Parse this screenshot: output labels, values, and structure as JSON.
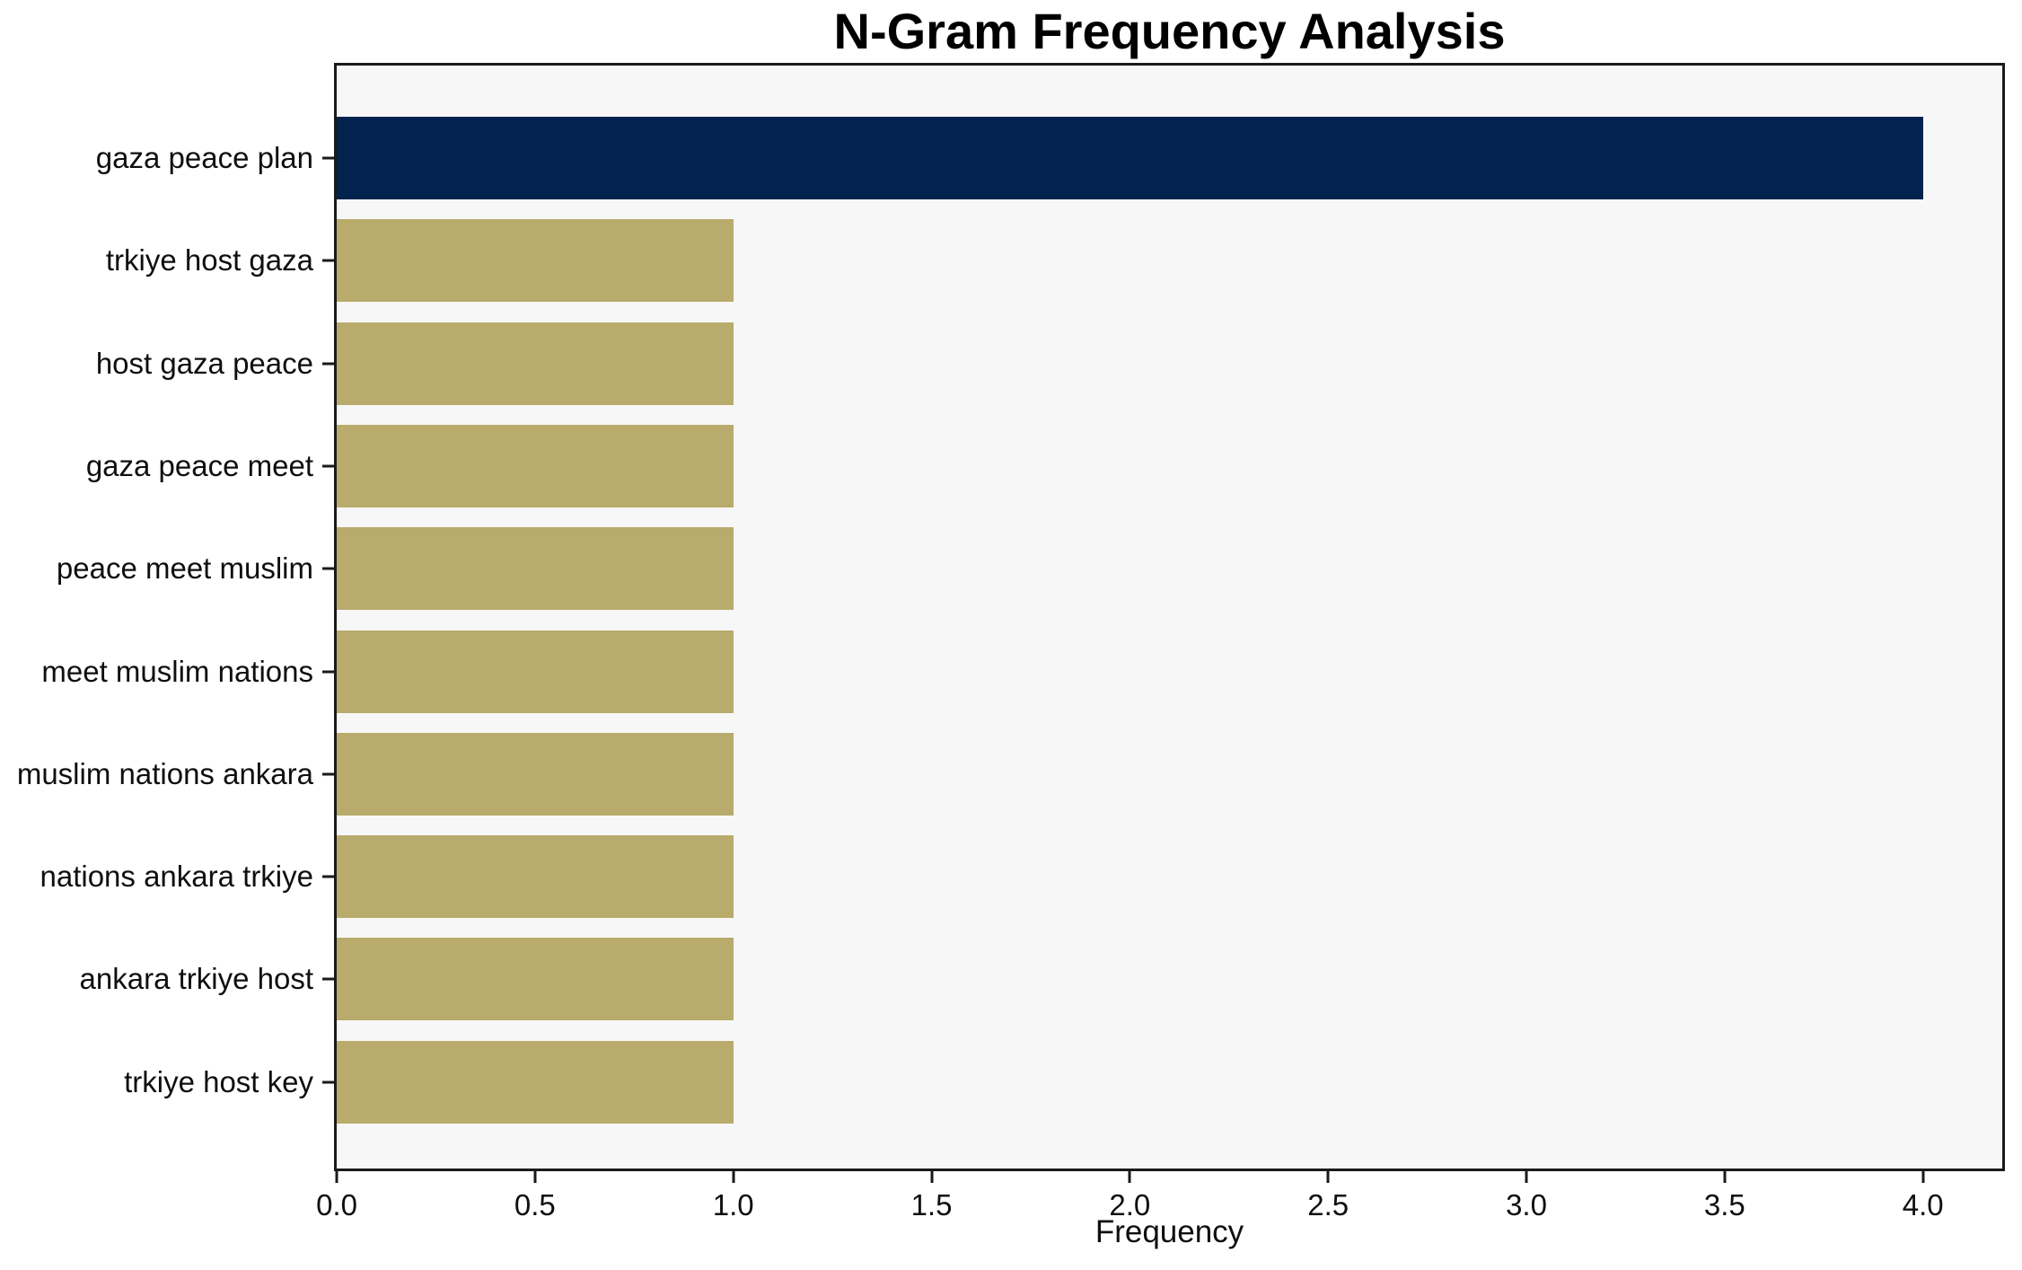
{
  "figure": {
    "title": "N-Gram Frequency Analysis"
  },
  "chart_data": {
    "type": "bar",
    "orientation": "horizontal",
    "title": "N-Gram Frequency Analysis",
    "xlabel": "Frequency",
    "ylabel": "",
    "categories": [
      "gaza peace plan",
      "trkiye host gaza",
      "host gaza peace",
      "gaza peace meet",
      "peace meet muslim",
      "meet muslim nations",
      "muslim nations ankara",
      "nations ankara trkiye",
      "ankara trkiye host",
      "trkiye host key"
    ],
    "values": [
      4,
      1,
      1,
      1,
      1,
      1,
      1,
      1,
      1,
      1
    ],
    "bar_colors": [
      "#02234d",
      "#b8ab6b",
      "#b8ab6b",
      "#b8ab6b",
      "#b8ab6b",
      "#b8ab6b",
      "#b8ab6b",
      "#b8ab6b",
      "#b8ab6b",
      "#b8ab6b"
    ],
    "xlim": [
      0,
      4.2
    ],
    "xticks": [
      0,
      0.5,
      1,
      1.5,
      2,
      2.5,
      3,
      3.5,
      4
    ],
    "xtick_labels": [
      "0.0",
      "0.5",
      "1.0",
      "1.5",
      "2.0",
      "2.5",
      "3.0",
      "3.5",
      "4.0"
    ],
    "grid": false,
    "legend_position": "none",
    "colors": {
      "highlight_bar": "#02234d",
      "default_bar": "#b8ab6b",
      "plot_background": "#f7f7f7",
      "figure_background": "#ffffff",
      "spine": "#1a1a1a",
      "text": "#0f0f0f"
    }
  }
}
